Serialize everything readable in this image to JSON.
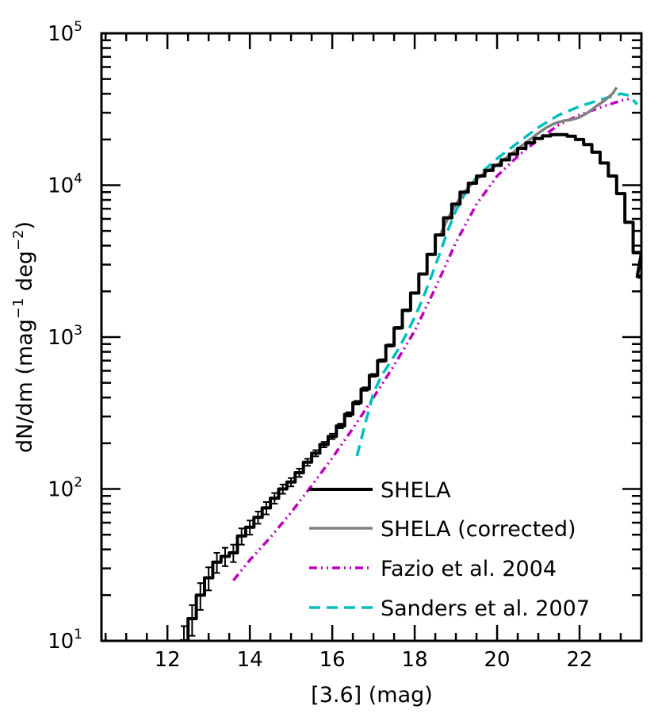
{
  "chart_data": {
    "type": "line",
    "title": "",
    "xlabel": "[3.6] (mag)",
    "ylabel": {
      "main": "dN/dm (mag",
      "exp1": "−1",
      "mid": " deg",
      "exp2": "−2",
      "close": ")"
    },
    "xlim": [
      10.4,
      23.5
    ],
    "ylim": [
      10,
      100000
    ],
    "yscale": "log",
    "x_ticks": [
      {
        "value": 12,
        "label": "12"
      },
      {
        "value": 14,
        "label": "14"
      },
      {
        "value": 16,
        "label": "16"
      },
      {
        "value": 18,
        "label": "18"
      },
      {
        "value": 20,
        "label": "20"
      },
      {
        "value": 22,
        "label": "22"
      }
    ],
    "y_ticks": [
      {
        "value": 10,
        "base": "10",
        "exp": "1"
      },
      {
        "value": 100,
        "base": "10",
        "exp": "2"
      },
      {
        "value": 1000,
        "base": "10",
        "exp": "3"
      },
      {
        "value": 10000,
        "base": "10",
        "exp": "4"
      },
      {
        "value": 100000,
        "base": "10",
        "exp": "5"
      }
    ],
    "legend_position": "bottom-right",
    "series": [
      {
        "name": "SHELA",
        "color": "#000000",
        "style": "solid",
        "error_bars": true,
        "x": [
          12.4,
          12.6,
          12.8,
          13.0,
          13.2,
          13.4,
          13.6,
          13.8,
          14.0,
          14.2,
          14.4,
          14.6,
          14.8,
          15.0,
          15.2,
          15.4,
          15.6,
          15.8,
          16.0,
          16.2,
          16.4,
          16.6,
          16.8,
          17.0,
          17.2,
          17.4,
          17.6,
          17.8,
          18.0,
          18.2,
          18.4,
          18.6,
          18.8,
          19.0,
          19.2,
          19.4,
          19.6,
          19.8,
          20.0,
          20.2,
          20.4,
          20.6,
          20.8,
          21.0,
          21.2,
          21.4,
          21.6,
          21.8,
          22.0,
          22.2,
          22.4,
          22.6,
          22.8,
          23.0,
          23.2,
          23.4,
          23.5
        ],
        "y": [
          10,
          14,
          20,
          26,
          33,
          36,
          38,
          49,
          56,
          65,
          75,
          87,
          100,
          111,
          128,
          150,
          172,
          196,
          222,
          260,
          310,
          370,
          455,
          560,
          700,
          880,
          1150,
          1500,
          1950,
          2600,
          3500,
          4700,
          6100,
          7500,
          9000,
          10300,
          11500,
          12500,
          13500,
          14700,
          16000,
          17500,
          19000,
          20300,
          21100,
          21500,
          21500,
          21000,
          20000,
          18500,
          16500,
          14000,
          11500,
          8800,
          5700,
          3600,
          2500
        ],
        "errors": [
          2.5,
          3.2,
          4,
          4.5,
          5,
          5,
          5,
          6,
          6,
          6,
          7,
          7,
          7,
          7,
          8,
          8,
          8,
          8,
          9,
          9,
          10,
          10,
          12,
          12,
          14,
          15,
          18,
          22,
          25,
          30,
          35,
          40,
          45,
          50,
          55,
          60,
          65,
          70,
          75,
          80,
          85,
          90,
          95,
          100,
          100,
          100,
          100,
          100,
          100,
          100,
          90,
          90,
          80,
          70,
          60,
          50,
          50
        ]
      },
      {
        "name": "SHELA (corrected)",
        "color": "#808080",
        "style": "solid",
        "x": [
          18.6,
          18.8,
          19.0,
          19.2,
          19.4,
          19.6,
          19.8,
          20.0,
          20.2,
          20.4,
          20.6,
          20.8,
          21.0,
          21.2,
          21.4,
          21.6,
          21.8,
          22.0,
          22.2,
          22.4,
          22.6,
          22.8,
          22.9
        ],
        "y": [
          4600,
          6000,
          7500,
          9000,
          10300,
          11500,
          12600,
          13600,
          15000,
          16500,
          18200,
          20000,
          22000,
          24000,
          25500,
          26500,
          27000,
          28000,
          30000,
          33000,
          36000,
          40000,
          44000
        ]
      },
      {
        "name": "Fazio et al. 2004",
        "color": "#bf00bf",
        "style": "dashdot",
        "x": [
          13.6,
          14.0,
          14.5,
          15.0,
          15.5,
          16.0,
          16.5,
          17.0,
          17.5,
          18.0,
          18.5,
          19.0,
          19.5,
          20.0,
          20.5,
          21.0,
          21.5,
          22.0,
          22.5,
          23.0,
          23.2
        ],
        "y": [
          25,
          34,
          48,
          70,
          105,
          160,
          250,
          400,
          650,
          1100,
          2100,
          4200,
          7500,
          11500,
          15500,
          20000,
          25000,
          29000,
          32500,
          36000,
          37000
        ]
      },
      {
        "name": "Sanders et al. 2007",
        "color": "#00bfbf",
        "style": "dashed",
        "x": [
          16.6,
          16.8,
          17.0,
          17.2,
          17.4,
          17.6,
          17.8,
          18.0,
          18.2,
          18.4,
          18.6,
          18.8,
          19.0,
          19.2,
          19.5,
          20.0,
          20.5,
          21.0,
          21.5,
          22.0,
          22.5,
          23.0,
          23.2,
          23.4
        ],
        "y": [
          165,
          270,
          430,
          560,
          680,
          830,
          1050,
          1350,
          1800,
          2500,
          3500,
          5000,
          6800,
          8600,
          11300,
          15000,
          19000,
          24000,
          29000,
          33000,
          36500,
          40000,
          39000,
          34000
        ]
      }
    ]
  }
}
